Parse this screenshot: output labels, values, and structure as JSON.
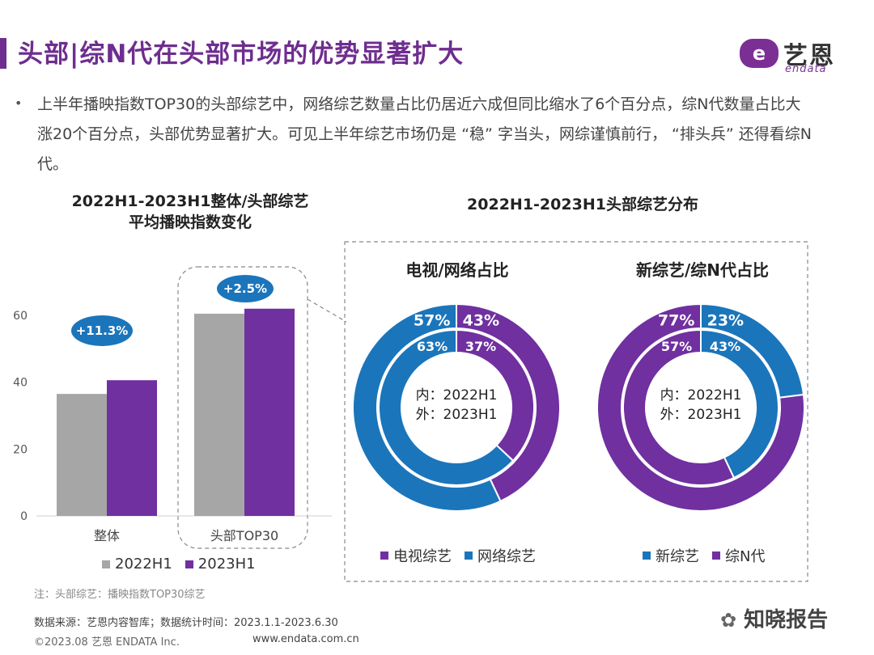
{
  "header": {
    "title": "头部|综N代在头部市场的优势显著扩大",
    "logo_cn": "艺恩",
    "logo_en": "endata",
    "logo_mark": "e"
  },
  "bullet": {
    "dot": "•",
    "text": "上半年播映指数TOP30的头部综艺中，网络综艺数量占比仍居近六成但同比缩水了6个百分点，综N代数量占比大涨20个百分点，头部优势显著扩大。可见上半年综艺市场仍是 “稳” 字当头，网综谨慎前行， “排头兵” 还得看综N代。"
  },
  "colors": {
    "gray": "#a6a6a6",
    "purple": "#7030a0",
    "blue": "#1b75bb",
    "title_purple": "#6e2d8f"
  },
  "chart_data": [
    {
      "type": "bar",
      "title": "2022H1-2023H1整体/头部综艺平均播映指数变化",
      "title_line1": "2022H1-2023H1整体/头部综艺",
      "title_line2": "平均播映指数变化",
      "categories": [
        "整体",
        "头部TOP30"
      ],
      "series": [
        {
          "name": "2022H1",
          "values": [
            36.5,
            60.5
          ]
        },
        {
          "name": "2023H1",
          "values": [
            40.6,
            62.0
          ]
        }
      ],
      "ylim": [
        0,
        60
      ],
      "yticks": [
        0,
        20,
        40,
        60
      ],
      "annotations": [
        "+11.3%",
        "+2.5%"
      ]
    },
    {
      "type": "pie",
      "subtype": "donut",
      "title": "2022H1-2023H1头部综艺分布",
      "chart_title": "电视/网络占比",
      "center_line1": "内：2022H1",
      "center_line2": "外：2023H1",
      "categories": [
        "电视综艺",
        "网络综艺"
      ],
      "inner_2022H1": [
        37,
        63
      ],
      "outer_2023H1": [
        43,
        57
      ],
      "inner_labels": [
        "37%",
        "63%"
      ],
      "outer_labels": [
        "43%",
        "57%"
      ]
    },
    {
      "type": "pie",
      "subtype": "donut",
      "chart_title": "新综艺/综N代占比",
      "center_line1": "内：2022H1",
      "center_line2": "外：2023H1",
      "categories": [
        "新综艺",
        "综N代"
      ],
      "inner_2022H1": [
        43,
        57
      ],
      "outer_2023H1": [
        23,
        77
      ],
      "inner_labels": [
        "43%",
        "57%"
      ],
      "outer_labels": [
        "23%",
        "77%"
      ]
    }
  ],
  "legends": {
    "bar": [
      "2022H1",
      "2023H1"
    ],
    "donut1": [
      "电视综艺",
      "网络综艺"
    ],
    "donut2": [
      "新综艺",
      "综N代"
    ]
  },
  "footer": {
    "note": "注：头部综艺：播映指数TOP30综艺",
    "source": "数据来源：艺恩内容智库；数据统计时间：2023.1.1-2023.6.30",
    "copyright": "©2023.08 艺恩 ENDATA Inc.",
    "url": "www.endata.com.cn",
    "watermark": "知晓报告"
  }
}
